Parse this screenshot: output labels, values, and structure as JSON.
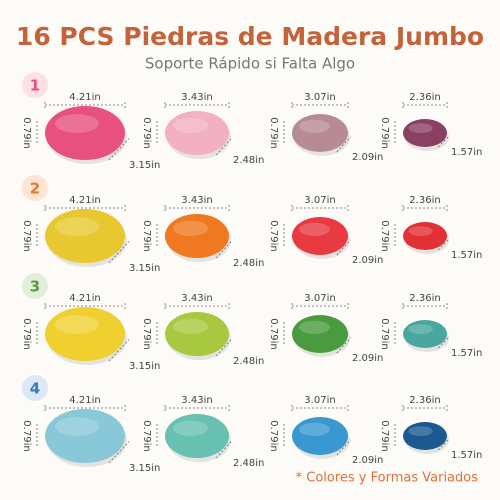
{
  "title": "16 PCS Piedras de Madera Jumbo",
  "subtitle": "Soporte Rápido si Falta Algo",
  "rows": [
    {
      "number": "1",
      "stones": [
        {
          "width": "4.21in",
          "height": "0.79in",
          "depth": "3.15in"
        },
        {
          "width": "3.43in",
          "height": "0.79in",
          "depth": "2.48in"
        },
        {
          "width": "3.07in",
          "height": "0.79in",
          "depth": "2.09in"
        },
        {
          "width": "2.36in",
          "height": "0.79in",
          "depth": "1.57in"
        }
      ]
    },
    {
      "number": "2",
      "stones": [
        {
          "width": "4.21in",
          "height": "0.79in",
          "depth": "3.15in"
        },
        {
          "width": "3.43in",
          "height": "0.79in",
          "depth": "2.48in"
        },
        {
          "width": "3.07in",
          "height": "0.79in",
          "depth": "2.09in"
        },
        {
          "width": "2.36in",
          "height": "0.79in",
          "depth": "1.57in"
        }
      ]
    },
    {
      "number": "3",
      "stones": [
        {
          "width": "4.21in",
          "height": "0.79in",
          "depth": "3.15in"
        },
        {
          "width": "3.43in",
          "height": "0.79in",
          "depth": "2.48in"
        },
        {
          "width": "3.07in",
          "height": "0.79in",
          "depth": "2.09in"
        },
        {
          "width": "2.36in",
          "height": "0.79in",
          "depth": "1.57in"
        }
      ]
    },
    {
      "number": "4",
      "stones": [
        {
          "width": "4.21in",
          "height": "0.79in",
          "depth": "3.15in"
        },
        {
          "width": "3.43in",
          "height": "0.79in",
          "depth": "2.48in"
        },
        {
          "width": "3.07in",
          "height": "0.79in",
          "depth": "2.09in"
        },
        {
          "width": "2.36in",
          "height": "0.79in",
          "depth": "1.57in"
        }
      ]
    }
  ],
  "note": "* Colores y Formas Variados"
}
